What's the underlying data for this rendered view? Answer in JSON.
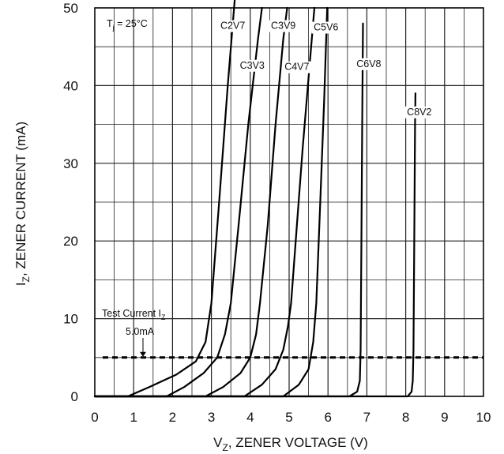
{
  "chart_data": {
    "type": "line",
    "xlabel": {
      "main": "V",
      "sub": "Z",
      "rest": ", ZENER VOLTAGE (V)"
    },
    "ylabel": {
      "main": "I",
      "sub": "Z",
      "rest": ", ZENER CURRENT (mA)"
    },
    "xlim": [
      0,
      10
    ],
    "ylim": [
      0,
      50
    ],
    "x_ticks": [
      "0",
      "1",
      "2",
      "3",
      "4",
      "5",
      "6",
      "7",
      "8",
      "9",
      "10"
    ],
    "y_ticks": [
      "0",
      "10",
      "20",
      "30",
      "40",
      "50"
    ],
    "grid": true,
    "condition": {
      "main": "T",
      "sub": "j",
      "rest": " = 25°C"
    },
    "test_current": {
      "line1_main": "Test Current I",
      "line1_sub": "Z",
      "line2": "5.0mA",
      "value": 5.0
    },
    "series": [
      {
        "name": "C2V7",
        "points": [
          [
            0,
            0
          ],
          [
            0.85,
            0
          ],
          [
            1.4,
            1.2
          ],
          [
            2.1,
            2.8
          ],
          [
            2.6,
            4.5
          ],
          [
            2.85,
            7
          ],
          [
            3.0,
            12
          ],
          [
            3.2,
            25
          ],
          [
            3.42,
            40
          ],
          [
            3.6,
            51
          ]
        ]
      },
      {
        "name": "C3V3",
        "points": [
          [
            0,
            0
          ],
          [
            1.85,
            0
          ],
          [
            2.3,
            1.2
          ],
          [
            2.8,
            3
          ],
          [
            3.15,
            5
          ],
          [
            3.35,
            8
          ],
          [
            3.5,
            12
          ],
          [
            3.7,
            22
          ],
          [
            3.95,
            35
          ],
          [
            4.2,
            46
          ],
          [
            4.3,
            50
          ]
        ]
      },
      {
        "name": "C3V9",
        "points": [
          [
            0,
            0
          ],
          [
            2.85,
            0
          ],
          [
            3.3,
            1.2
          ],
          [
            3.75,
            3
          ],
          [
            4.0,
            5
          ],
          [
            4.15,
            8
          ],
          [
            4.25,
            12
          ],
          [
            4.45,
            22
          ],
          [
            4.65,
            35
          ],
          [
            4.85,
            46
          ],
          [
            4.95,
            50
          ]
        ]
      },
      {
        "name": "C4V7",
        "points": [
          [
            0,
            0
          ],
          [
            3.85,
            0
          ],
          [
            4.3,
            1.5
          ],
          [
            4.65,
            3.5
          ],
          [
            4.85,
            6
          ],
          [
            4.97,
            9
          ],
          [
            5.05,
            12
          ],
          [
            5.2,
            22
          ],
          [
            5.35,
            32
          ],
          [
            5.5,
            41
          ],
          [
            5.6,
            47
          ],
          [
            5.65,
            50
          ]
        ]
      },
      {
        "name": "C5V6",
        "points": [
          [
            0,
            0
          ],
          [
            4.85,
            0
          ],
          [
            5.25,
            1.5
          ],
          [
            5.5,
            3.5
          ],
          [
            5.62,
            7
          ],
          [
            5.7,
            12
          ],
          [
            5.8,
            25
          ],
          [
            5.9,
            38
          ],
          [
            5.98,
            50
          ]
        ]
      },
      {
        "name": "C6V8",
        "points": [
          [
            0,
            0
          ],
          [
            6.55,
            0
          ],
          [
            6.75,
            0.6
          ],
          [
            6.82,
            2
          ],
          [
            6.84,
            6
          ],
          [
            6.86,
            20
          ],
          [
            6.88,
            35
          ],
          [
            6.9,
            48
          ]
        ]
      },
      {
        "name": "C8V2",
        "points": [
          [
            0,
            0
          ],
          [
            8.05,
            0
          ],
          [
            8.15,
            0.6
          ],
          [
            8.18,
            2
          ],
          [
            8.2,
            6
          ],
          [
            8.22,
            20
          ],
          [
            8.24,
            35
          ],
          [
            8.25,
            39
          ]
        ]
      }
    ],
    "series_labels": [
      {
        "name": "C2V7",
        "x": 3.55,
        "y": 47.3
      },
      {
        "name": "C3V3",
        "x": 4.05,
        "y": 42.2
      },
      {
        "name": "C3V9",
        "x": 4.85,
        "y": 47.3
      },
      {
        "name": "C4V7",
        "x": 5.2,
        "y": 42.0
      },
      {
        "name": "C5V6",
        "x": 5.95,
        "y": 47.1
      },
      {
        "name": "C6V8",
        "x": 7.05,
        "y": 42.4
      },
      {
        "name": "C8V2",
        "x": 8.35,
        "y": 36.2
      }
    ]
  }
}
